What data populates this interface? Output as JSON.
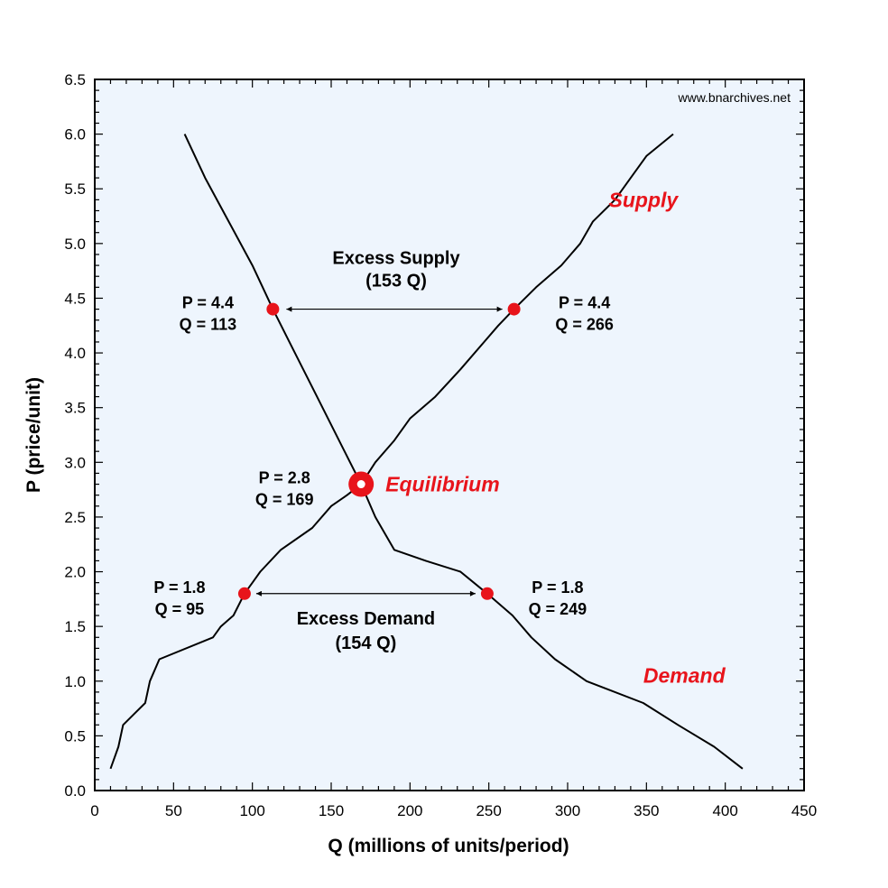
{
  "chart_data": {
    "type": "line",
    "xlabel": "Q (millions of units/period)",
    "ylabel": "P (price/unit)",
    "xlim": [
      0,
      450
    ],
    "ylim": [
      0,
      6.5
    ],
    "x_ticks": [
      "0",
      "50",
      "100",
      "150",
      "200",
      "250",
      "300",
      "350",
      "400",
      "450"
    ],
    "y_ticks": [
      "0.0",
      "0.5",
      "1.0",
      "1.5",
      "2.0",
      "2.5",
      "3.0",
      "3.5",
      "4.0",
      "4.5",
      "5.0",
      "5.5",
      "6.0",
      "6.5"
    ],
    "grid": false,
    "background_color": "#eef5fd",
    "line_color": "#000000",
    "point_color": "#e8141b",
    "series": [
      {
        "name": "Supply",
        "label_color": "#e8141b",
        "points": [
          [
            10,
            0.2
          ],
          [
            15,
            0.4
          ],
          [
            18,
            0.6
          ],
          [
            25,
            0.7
          ],
          [
            32,
            0.8
          ],
          [
            35,
            1.0
          ],
          [
            41,
            1.2
          ],
          [
            75,
            1.4
          ],
          [
            80,
            1.5
          ],
          [
            88,
            1.6
          ],
          [
            95,
            1.8
          ],
          [
            100,
            1.9
          ],
          [
            105,
            2.0
          ],
          [
            118,
            2.2
          ],
          [
            138,
            2.4
          ],
          [
            150,
            2.6
          ],
          [
            160,
            2.7
          ],
          [
            169,
            2.8
          ],
          [
            178,
            3.0
          ],
          [
            190,
            3.2
          ],
          [
            200,
            3.4
          ],
          [
            216,
            3.6
          ],
          [
            232,
            3.85
          ],
          [
            247,
            4.1
          ],
          [
            256,
            4.25
          ],
          [
            266,
            4.4
          ],
          [
            280,
            4.6
          ],
          [
            296,
            4.8
          ],
          [
            308,
            5.0
          ],
          [
            316,
            5.2
          ],
          [
            330,
            5.4
          ],
          [
            340,
            5.6
          ],
          [
            350,
            5.8
          ],
          [
            367,
            6.0
          ]
        ]
      },
      {
        "name": "Demand",
        "label_color": "#e8141b",
        "points": [
          [
            57,
            6.0
          ],
          [
            70,
            5.6
          ],
          [
            85,
            5.2
          ],
          [
            100,
            4.8
          ],
          [
            113,
            4.4
          ],
          [
            127,
            4.0
          ],
          [
            141,
            3.6
          ],
          [
            155,
            3.2
          ],
          [
            169,
            2.8
          ],
          [
            178,
            2.5
          ],
          [
            190,
            2.2
          ],
          [
            210,
            2.1
          ],
          [
            232,
            2.0
          ],
          [
            249,
            1.8
          ],
          [
            265,
            1.6
          ],
          [
            277,
            1.4
          ],
          [
            292,
            1.2
          ],
          [
            312,
            1.0
          ],
          [
            348,
            0.8
          ],
          [
            370,
            0.6
          ],
          [
            393,
            0.4
          ],
          [
            411,
            0.2
          ]
        ]
      }
    ],
    "points": [
      {
        "x": 113,
        "y": 4.4,
        "label_p": "P = 4.4",
        "label_q": "Q = 113"
      },
      {
        "x": 266,
        "y": 4.4,
        "label_p": "P = 4.4",
        "label_q": "Q = 266"
      },
      {
        "x": 95,
        "y": 1.8,
        "label_p": "P = 1.8",
        "label_q": "Q = 95"
      },
      {
        "x": 249,
        "y": 1.8,
        "label_p": "P = 1.8",
        "label_q": "Q = 249"
      }
    ],
    "equilibrium": {
      "x": 169,
      "y": 2.8,
      "label": "Equilibrium",
      "label_p": "P = 2.8",
      "label_q": "Q = 169"
    },
    "annotations": {
      "excess_supply": {
        "title": "Excess Supply",
        "value": "(153 Q)",
        "from": 113,
        "to": 266,
        "y": 4.4
      },
      "excess_demand": {
        "title": "Excess Demand",
        "value": "(154 Q)",
        "from": 95,
        "to": 249,
        "y": 1.8
      }
    },
    "watermark": "www.bnarchives.net"
  }
}
